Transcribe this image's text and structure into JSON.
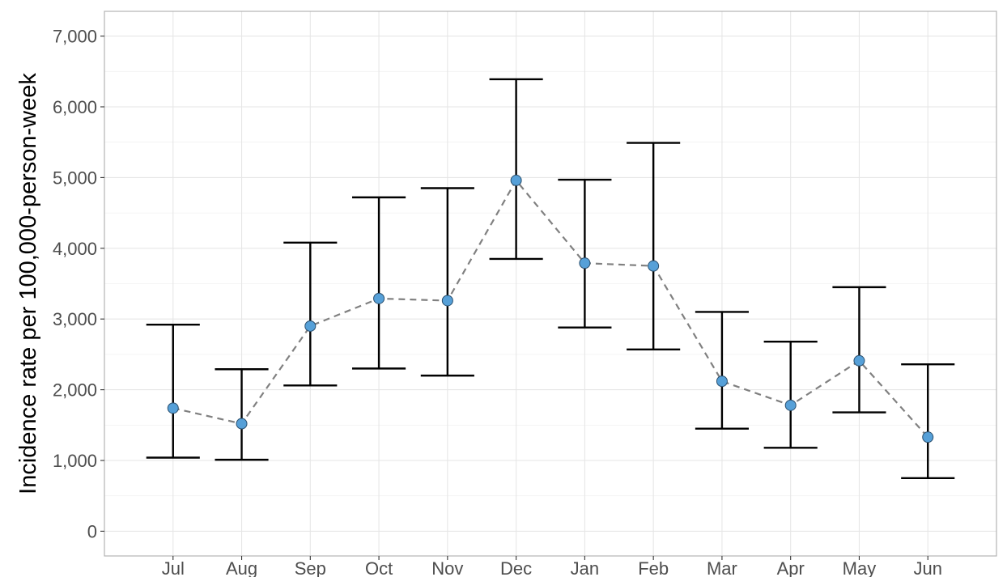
{
  "chart_data": {
    "type": "scatter",
    "title": "",
    "xlabel": "",
    "ylabel": "Incidence rate per 100,000-person-week",
    "categories": [
      "Jul",
      "Aug",
      "Sep",
      "Oct",
      "Nov",
      "Dec",
      "Jan",
      "Feb",
      "Mar",
      "Apr",
      "May",
      "Jun"
    ],
    "values": [
      1740,
      1520,
      2900,
      3290,
      3260,
      4960,
      3790,
      3750,
      2120,
      1780,
      2410,
      1330
    ],
    "lower": [
      1040,
      1010,
      2060,
      2300,
      2200,
      3850,
      2880,
      2570,
      1450,
      1180,
      1680,
      750
    ],
    "upper": [
      2920,
      2290,
      4080,
      4720,
      4850,
      6390,
      4970,
      5490,
      3100,
      2680,
      3450,
      2360
    ],
    "ylim": [
      -350,
      7350
    ],
    "yticks": [
      0,
      1000,
      2000,
      3000,
      4000,
      5000,
      6000,
      7000
    ],
    "ytick_labels": [
      "0",
      "1,000",
      "2,000",
      "3,000",
      "4,000",
      "5,000",
      "6,000",
      "7,000"
    ],
    "grid": true,
    "error_bars": true,
    "connector": "dashed",
    "colors": {
      "point": "#56a0d8",
      "point_stroke": "#2a4f6e",
      "error_bar": "#000000",
      "connector": "#808080",
      "grid": "#e6e6e6"
    }
  }
}
